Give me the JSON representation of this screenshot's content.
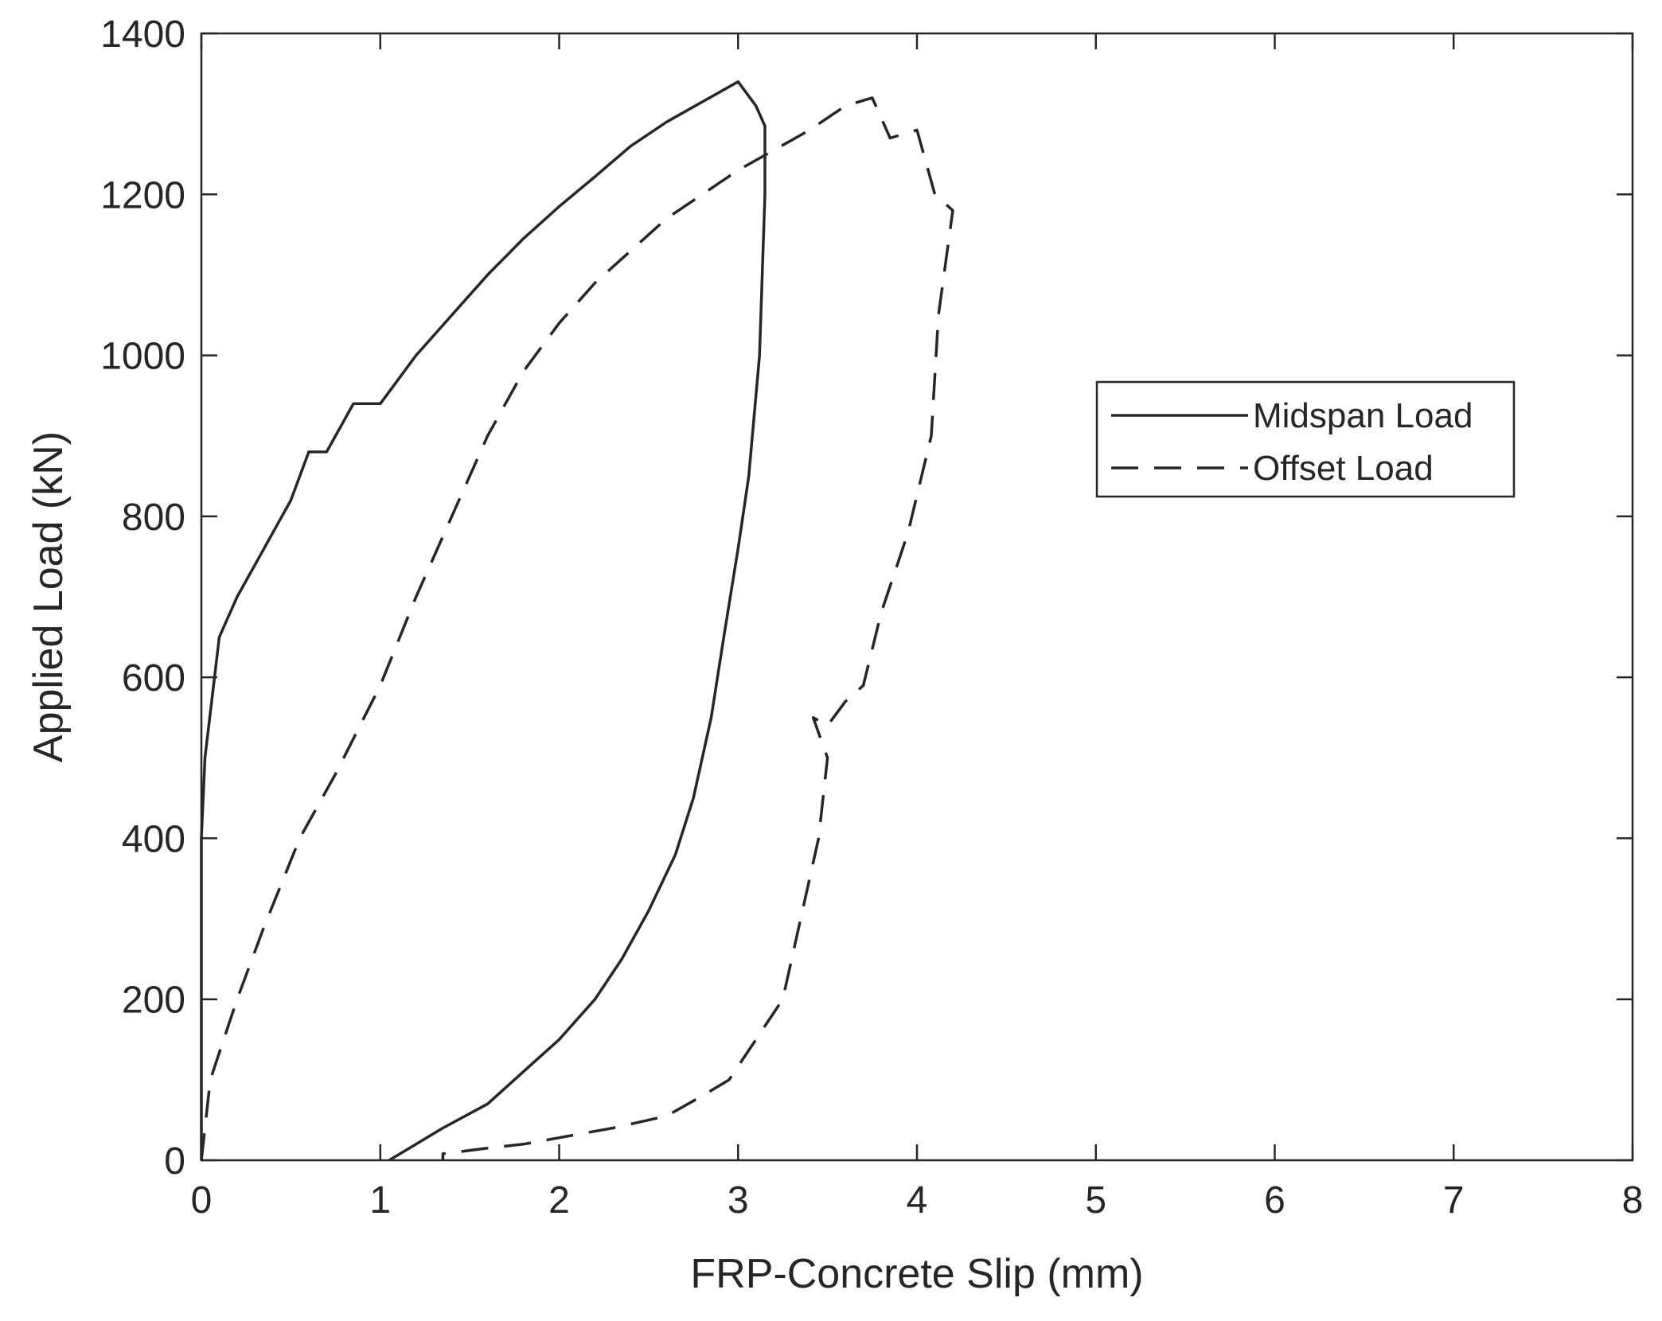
{
  "chart_data": {
    "type": "line",
    "title": "",
    "xlabel": "FRP-Concrete Slip (mm)",
    "ylabel": "Applied Load (kN)",
    "xlim": [
      0,
      8
    ],
    "ylim": [
      0,
      1400
    ],
    "xticks": [
      0,
      1,
      2,
      3,
      4,
      5,
      6,
      7,
      8
    ],
    "yticks": [
      0,
      200,
      400,
      600,
      800,
      1000,
      1200,
      1400
    ],
    "grid": false,
    "legend_position": "right",
    "series": [
      {
        "name": "Midspan Load",
        "style": "solid",
        "color": "#262626",
        "points": [
          [
            0.0,
            0
          ],
          [
            0.0,
            400
          ],
          [
            0.02,
            500
          ],
          [
            0.1,
            650
          ],
          [
            0.2,
            700
          ],
          [
            0.35,
            760
          ],
          [
            0.5,
            820
          ],
          [
            0.6,
            880
          ],
          [
            0.7,
            880
          ],
          [
            0.85,
            940
          ],
          [
            1.0,
            940
          ],
          [
            1.2,
            1000
          ],
          [
            1.4,
            1050
          ],
          [
            1.6,
            1100
          ],
          [
            1.8,
            1145
          ],
          [
            2.0,
            1185
          ],
          [
            2.2,
            1222
          ],
          [
            2.4,
            1260
          ],
          [
            2.6,
            1290
          ],
          [
            2.8,
            1315
          ],
          [
            3.0,
            1340
          ],
          [
            3.1,
            1310
          ],
          [
            3.15,
            1285
          ],
          [
            3.15,
            1200
          ],
          [
            3.12,
            1000
          ],
          [
            3.06,
            850
          ],
          [
            3.0,
            760
          ],
          [
            2.92,
            650
          ],
          [
            2.85,
            550
          ],
          [
            2.75,
            450
          ],
          [
            2.65,
            380
          ],
          [
            2.5,
            310
          ],
          [
            2.35,
            250
          ],
          [
            2.2,
            200
          ],
          [
            2.0,
            150
          ],
          [
            1.8,
            110
          ],
          [
            1.6,
            70
          ],
          [
            1.35,
            40
          ],
          [
            1.2,
            20
          ],
          [
            1.05,
            0
          ]
        ]
      },
      {
        "name": "Offset Load",
        "style": "dashed",
        "color": "#262626",
        "points": [
          [
            0.0,
            0
          ],
          [
            0.05,
            100
          ],
          [
            0.2,
            200
          ],
          [
            0.35,
            290
          ],
          [
            0.55,
            400
          ],
          [
            0.75,
            480
          ],
          [
            1.0,
            590
          ],
          [
            1.2,
            700
          ],
          [
            1.4,
            800
          ],
          [
            1.6,
            900
          ],
          [
            1.8,
            980
          ],
          [
            2.0,
            1040
          ],
          [
            2.2,
            1090
          ],
          [
            2.4,
            1130
          ],
          [
            2.6,
            1170
          ],
          [
            2.8,
            1200
          ],
          [
            3.0,
            1230
          ],
          [
            3.2,
            1255
          ],
          [
            3.4,
            1280
          ],
          [
            3.6,
            1310
          ],
          [
            3.75,
            1320
          ],
          [
            3.85,
            1270
          ],
          [
            4.0,
            1280
          ],
          [
            4.1,
            1200
          ],
          [
            4.2,
            1180
          ],
          [
            4.12,
            1050
          ],
          [
            4.08,
            900
          ],
          [
            3.95,
            780
          ],
          [
            3.8,
            680
          ],
          [
            3.7,
            590
          ],
          [
            3.6,
            570
          ],
          [
            3.5,
            540
          ],
          [
            3.42,
            550
          ],
          [
            3.5,
            500
          ],
          [
            3.45,
            400
          ],
          [
            3.35,
            300
          ],
          [
            3.25,
            200
          ],
          [
            3.1,
            150
          ],
          [
            2.95,
            100
          ],
          [
            2.8,
            80
          ],
          [
            2.6,
            55
          ],
          [
            2.3,
            40
          ],
          [
            2.0,
            28
          ],
          [
            1.8,
            20
          ],
          [
            1.6,
            15
          ],
          [
            1.35,
            8
          ],
          [
            1.35,
            0
          ]
        ]
      }
    ]
  }
}
